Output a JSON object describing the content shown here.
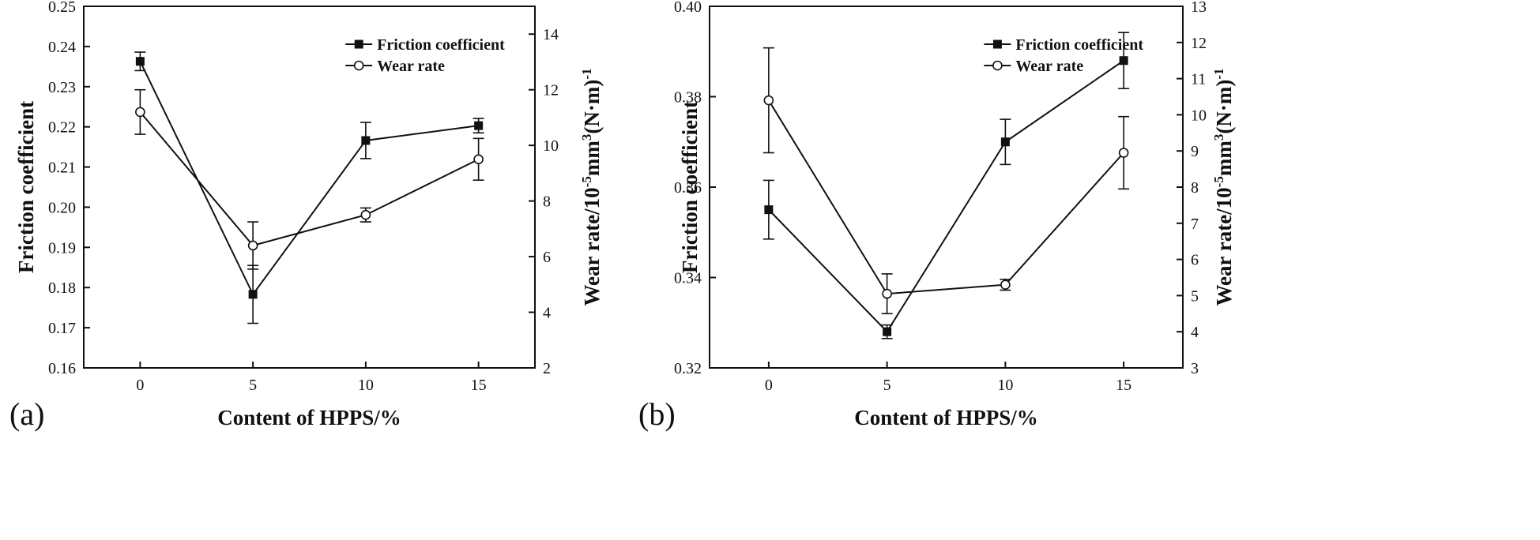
{
  "chart_data": [
    {
      "panel_label": "(a)",
      "type": "line",
      "xlabel": "Content of HPPS/%",
      "ylabel": "Friction coefficient",
      "ylabel_right": {
        "main": "Wear rate/10",
        "sup1": "-5",
        "mid": "mm",
        "sup2": "3",
        "paren": "(N·m)",
        "sup3": "-1"
      },
      "x_ticks": [
        0,
        5,
        10,
        15
      ],
      "xlim": [
        -2.5,
        17.5
      ],
      "ylim": [
        0.16,
        0.25
      ],
      "y_ticks": [
        "0.16",
        "0.17",
        "0.18",
        "0.19",
        "0.20",
        "0.21",
        "0.22",
        "0.23",
        "0.24",
        "0.25"
      ],
      "y2lim": [
        2,
        15
      ],
      "y2_ticks": [
        "2",
        "4",
        "6",
        "8",
        "10",
        "12",
        "14"
      ],
      "legend_position": "top-right",
      "series": [
        {
          "name": "Friction coefficient",
          "axis": "left",
          "marker": "filled-square",
          "x": [
            0,
            5,
            10,
            15
          ],
          "y": [
            0.2363,
            0.1783,
            0.2166,
            0.2203
          ],
          "err": [
            0.0023,
            0.0072,
            0.0045,
            0.0018
          ]
        },
        {
          "name": "Wear rate",
          "axis": "right",
          "marker": "open-circle",
          "x": [
            0,
            5,
            10,
            15
          ],
          "y": [
            11.2,
            6.4,
            7.5,
            9.5
          ],
          "err": [
            0.8,
            0.85,
            0.25,
            0.75
          ]
        }
      ]
    },
    {
      "panel_label": "(b)",
      "type": "line",
      "xlabel": "Content of HPPS/%",
      "ylabel": "Friction coefficient",
      "ylabel_right": {
        "main": "Wear rate/10",
        "sup1": "-5",
        "mid": "mm",
        "sup2": "3",
        "paren": "(N·m)",
        "sup3": "-1"
      },
      "x_ticks": [
        0,
        5,
        10,
        15
      ],
      "xlim": [
        -2.5,
        17.5
      ],
      "ylim": [
        0.32,
        0.4
      ],
      "y_ticks": [
        "0.32",
        "0.34",
        "0.36",
        "0.38",
        "0.40"
      ],
      "y2lim": [
        3,
        13
      ],
      "y2_ticks": [
        "3",
        "4",
        "5",
        "6",
        "7",
        "8",
        "9",
        "10",
        "11",
        "12",
        "13"
      ],
      "legend_position": "top-right",
      "series": [
        {
          "name": "Friction coefficient",
          "axis": "left",
          "marker": "filled-square",
          "x": [
            0,
            5,
            10,
            15
          ],
          "y": [
            0.355,
            0.328,
            0.37,
            0.388
          ],
          "err": [
            0.0065,
            0.0015,
            0.005,
            0.0062
          ]
        },
        {
          "name": "Wear rate",
          "axis": "right",
          "marker": "open-circle",
          "x": [
            0,
            5,
            10,
            15
          ],
          "y": [
            10.4,
            5.05,
            5.3,
            8.95
          ],
          "err": [
            1.45,
            0.55,
            0.15,
            1.0
          ]
        }
      ]
    }
  ]
}
